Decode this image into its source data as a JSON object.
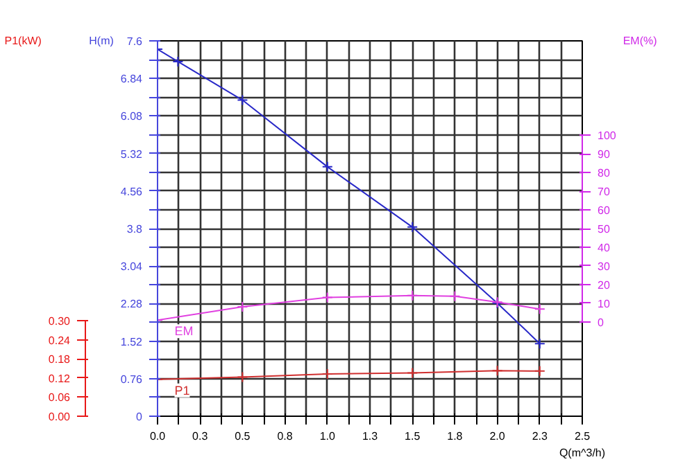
{
  "chart_data": {
    "type": "line",
    "xlabel": "Q(m^3/h)",
    "ylabel": "H(m)",
    "y2label": "P1(kW)",
    "y3label": "EM(%)",
    "xlim": [
      0,
      2.5
    ],
    "ylim": [
      0,
      7.6
    ],
    "y2lim": [
      0,
      1.18
    ],
    "y3lim": [
      -50.4,
      150.4
    ],
    "xticks": [
      {
        "value": 0,
        "label": "0.0"
      },
      {
        "value": 0.125,
        "label": null
      },
      {
        "value": 0.25,
        "label": "0.3"
      },
      {
        "value": 0.375,
        "label": null
      },
      {
        "value": 0.5,
        "label": "0.5"
      },
      {
        "value": 0.625,
        "label": null
      },
      {
        "value": 0.75,
        "label": "0.8"
      },
      {
        "value": 0.875,
        "label": null
      },
      {
        "value": 1.0,
        "label": "1.0"
      },
      {
        "value": 1.125,
        "label": null
      },
      {
        "value": 1.25,
        "label": "1.3"
      },
      {
        "value": 1.375,
        "label": null
      },
      {
        "value": 1.5,
        "label": "1.5"
      },
      {
        "value": 1.625,
        "label": null
      },
      {
        "value": 1.75,
        "label": "1.8"
      },
      {
        "value": 1.875,
        "label": null
      },
      {
        "value": 2.0,
        "label": "2.0"
      },
      {
        "value": 2.125,
        "label": null
      },
      {
        "value": 2.25,
        "label": "2.3"
      },
      {
        "value": 2.375,
        "label": null
      },
      {
        "value": 2.5,
        "label": "2.5"
      }
    ],
    "yticks": [
      0,
      {
        "value": 0.38,
        "label": null
      },
      0.76,
      {
        "value": 1.14,
        "label": null
      },
      1.52,
      {
        "value": 1.9,
        "label": null
      },
      2.28,
      {
        "value": 2.66,
        "label": null
      },
      3.04,
      {
        "value": 3.42,
        "label": null
      },
      3.8,
      {
        "value": 4.18,
        "label": null
      },
      4.56,
      {
        "value": 4.94,
        "label": null
      },
      5.32,
      {
        "value": 5.7,
        "label": null
      },
      6.08,
      {
        "value": 6.46,
        "label": null
      },
      6.84,
      {
        "value": 7.22,
        "label": null
      },
      7.6
    ],
    "y2ticks": [
      {
        "value": 0,
        "label": "0.00"
      },
      {
        "value": 0.06,
        "label": "0.06"
      },
      {
        "value": 0.12,
        "label": "0.12"
      },
      {
        "value": 0.18,
        "label": "0.18"
      },
      {
        "value": 0.24,
        "label": "0.24"
      },
      {
        "value": 0.3,
        "label": "0.30"
      }
    ],
    "y3ticks": [
      0,
      10,
      20,
      30,
      40,
      50,
      60,
      70,
      80,
      90,
      100
    ],
    "grid": true,
    "marker": "cross",
    "line_style": "solid",
    "series": [
      {
        "axis": "y",
        "color": "#2828c8",
        "x": [
          0,
          0.12,
          0.5,
          1.0,
          1.5,
          2.0,
          2.25
        ],
        "values": [
          7.43,
          7.18,
          6.4,
          5.05,
          3.83,
          2.29,
          1.47
        ]
      },
      {
        "name": "EM",
        "axis": "y3",
        "color": "#e040e0",
        "x": [
          0,
          0.5,
          1.0,
          1.5,
          1.75,
          2.0,
          2.25
        ],
        "values": [
          1,
          8.1,
          13.1,
          14.2,
          13.8,
          10.6,
          6.9
        ]
      },
      {
        "name": "P1",
        "axis": "y2",
        "color": "#d03030",
        "x": [
          0,
          0.5,
          1.0,
          1.5,
          2.0,
          2.25
        ],
        "values": [
          0.116,
          0.123,
          0.133,
          0.136,
          0.143,
          0.142
        ]
      }
    ]
  }
}
